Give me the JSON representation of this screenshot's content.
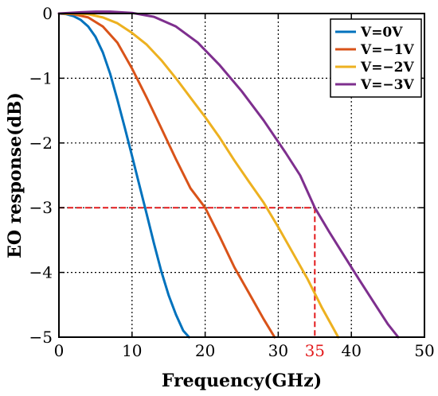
{
  "chart_data": {
    "type": "line",
    "title": "",
    "xlabel": "Frequency(GHz)",
    "ylabel": "EO response(dB)",
    "xlim": [
      0,
      50
    ],
    "ylim": [
      -5,
      0
    ],
    "xticks": [
      "0",
      "10",
      "20",
      "30",
      "40",
      "50"
    ],
    "yticks": [
      "0",
      "−1",
      "−2",
      "−3",
      "−4",
      "−5"
    ],
    "grid": true,
    "legend_position": "top-right",
    "series": [
      {
        "name": "V=0V",
        "color": "#0072BD",
        "x": [
          0,
          1,
          2,
          3,
          4,
          5,
          6,
          7,
          8,
          9,
          10,
          11,
          12,
          13,
          14,
          15,
          16,
          17,
          17.8
        ],
        "y": [
          0,
          -0.01,
          -0.04,
          -0.1,
          -0.2,
          -0.36,
          -0.6,
          -0.93,
          -1.33,
          -1.76,
          -2.2,
          -2.65,
          -3.1,
          -3.55,
          -3.98,
          -4.35,
          -4.65,
          -4.9,
          -5
        ]
      },
      {
        "name": "V=−1V",
        "color": "#D95319",
        "x": [
          0,
          2,
          4,
          6,
          8,
          10,
          12,
          14,
          16,
          18,
          20,
          22,
          24,
          26,
          28,
          29.5
        ],
        "y": [
          0,
          -0.01,
          -0.06,
          -0.2,
          -0.45,
          -0.85,
          -1.3,
          -1.77,
          -2.25,
          -2.7,
          -3.0,
          -3.45,
          -3.92,
          -4.32,
          -4.72,
          -5
        ]
      },
      {
        "name": "V=−2V",
        "color": "#EDB120",
        "x": [
          0,
          2,
          4,
          6,
          8,
          10,
          12,
          14,
          16,
          18,
          20,
          22,
          24,
          26,
          28,
          30,
          32,
          34,
          36,
          38.2
        ],
        "y": [
          0,
          0,
          -0.01,
          -0.06,
          -0.15,
          -0.3,
          -0.48,
          -0.72,
          -1.0,
          -1.3,
          -1.6,
          -1.92,
          -2.27,
          -2.6,
          -2.92,
          -3.3,
          -3.7,
          -4.1,
          -4.55,
          -5
        ]
      },
      {
        "name": "V=−3V",
        "color": "#7E2F8E",
        "x": [
          0,
          3,
          5,
          7,
          10,
          13,
          16,
          19,
          22,
          25,
          28,
          31,
          33,
          35,
          37,
          39,
          41,
          43,
          45,
          46.4
        ],
        "y": [
          0,
          0.02,
          0.03,
          0.03,
          0.01,
          -0.05,
          -0.2,
          -0.45,
          -0.8,
          -1.2,
          -1.65,
          -2.15,
          -2.5,
          -3.0,
          -3.38,
          -3.74,
          -4.1,
          -4.45,
          -4.8,
          -5
        ]
      }
    ],
    "annotations": {
      "h_line_y": -3,
      "v_line_x": 35,
      "label": "35",
      "color": "#E31A1C"
    }
  }
}
